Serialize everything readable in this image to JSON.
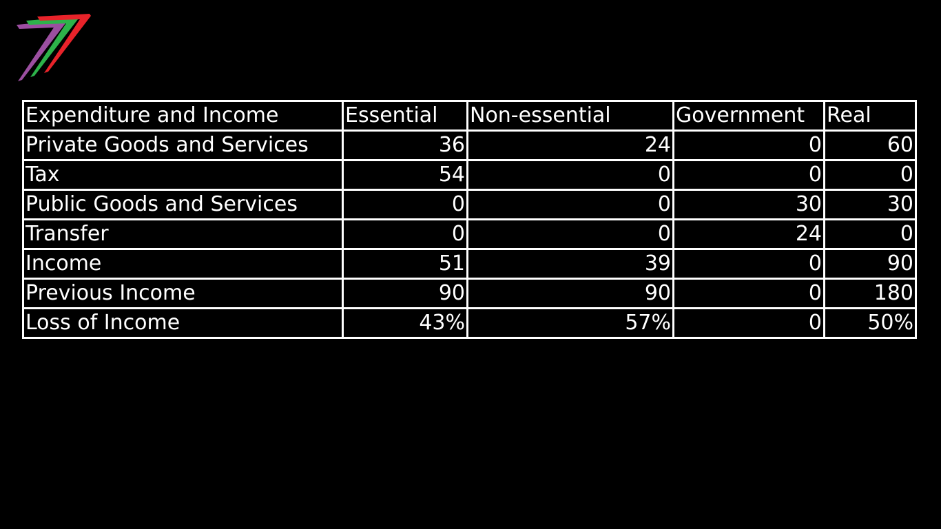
{
  "table": {
    "headers": [
      "Expenditure and Income",
      "Essential",
      "Non-essential",
      "Government",
      "Real"
    ],
    "rows": [
      {
        "label": "Private Goods and Services",
        "values": [
          "36",
          "24",
          "0",
          "60"
        ]
      },
      {
        "label": "Tax",
        "values": [
          "54",
          "0",
          "0",
          "0"
        ]
      },
      {
        "label": "Public Goods and Services",
        "values": [
          "0",
          "0",
          "30",
          "30"
        ]
      },
      {
        "label": "Transfer",
        "values": [
          "0",
          "0",
          "24",
          "0"
        ]
      },
      {
        "label": "Income",
        "values": [
          "51",
          "39",
          "0",
          "90"
        ]
      },
      {
        "label": "Previous Income",
        "values": [
          "90",
          "90",
          "0",
          "180"
        ]
      },
      {
        "label": "Loss of Income",
        "values": [
          "43%",
          "57%",
          "0",
          "50%"
        ]
      }
    ]
  },
  "colors": {
    "background": "#000000",
    "text": "#ffffff",
    "logo_red": "#e8232a",
    "logo_green": "#2db34a",
    "logo_purple": "#9b4fa0"
  },
  "icons": {
    "logo": "seven-logo-icon"
  }
}
